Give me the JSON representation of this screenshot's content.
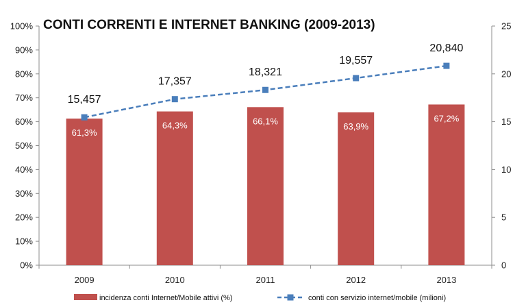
{
  "chart_data": {
    "type": "bar",
    "title": "CONTI CORRENTI E INTERNET BANKING (2009-2013)",
    "categories": [
      "2009",
      "2010",
      "2011",
      "2012",
      "2013"
    ],
    "series": [
      {
        "name": "incidenza conti Internet/Mobile attivi (%)",
        "type": "bar",
        "axis": "left",
        "values": [
          61.3,
          64.3,
          66.1,
          63.9,
          67.2
        ],
        "labels": [
          "61,3%",
          "64,3%",
          "66,1%",
          "63,9%",
          "67,2%"
        ],
        "color": "#c0504d"
      },
      {
        "name": "conti con servizio internet/mobile (milioni)",
        "type": "line",
        "axis": "right",
        "line_style": "dashed",
        "marker": "square",
        "values": [
          15.457,
          17.357,
          18.321,
          19.557,
          20.84
        ],
        "labels": [
          "15,457",
          "17,357",
          "18,321",
          "19,557",
          "20,840"
        ],
        "color": "#4a7ebb"
      }
    ],
    "y_left": {
      "ylim": [
        0,
        100
      ],
      "ticks": [
        "0%",
        "10%",
        "20%",
        "30%",
        "40%",
        "50%",
        "60%",
        "70%",
        "80%",
        "90%",
        "100%"
      ]
    },
    "y_right": {
      "ylim": [
        0,
        25
      ],
      "ticks": [
        "0",
        "5",
        "10",
        "15",
        "20",
        "25"
      ]
    },
    "grid": false,
    "legend": "bottom"
  }
}
